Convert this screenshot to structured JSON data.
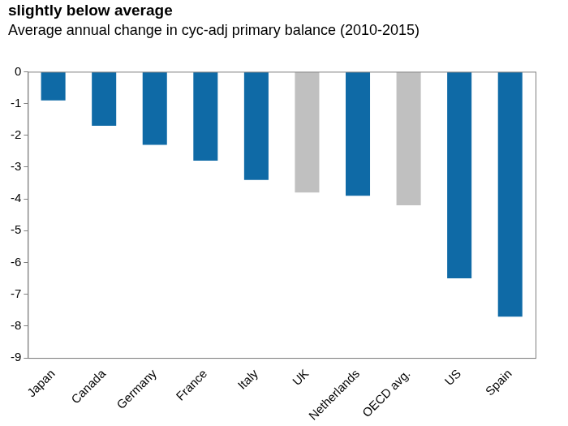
{
  "chart_data": {
    "type": "bar",
    "title": "slightly below average",
    "subtitle": "Average annual change in cyc-adj primary balance (2010-2015)",
    "categories": [
      "Japan",
      "Canada",
      "Germany",
      "France",
      "Italy",
      "UK",
      "Netherlands",
      "OECD avg.",
      "US",
      "Spain"
    ],
    "values": [
      -0.9,
      -1.7,
      -2.3,
      -2.8,
      -3.4,
      -3.8,
      -3.9,
      -4.2,
      -6.5,
      -7.7
    ],
    "colors": [
      "#0f6aa6",
      "#0f6aa6",
      "#0f6aa6",
      "#0f6aa6",
      "#0f6aa6",
      "#c0c0c0",
      "#0f6aa6",
      "#c0c0c0",
      "#0f6aa6",
      "#0f6aa6"
    ],
    "ylim": [
      -9,
      0
    ],
    "yticks": [
      -9,
      -8,
      -7,
      -6,
      -5,
      -4,
      -3,
      -2,
      -1,
      0
    ],
    "grid": false
  }
}
